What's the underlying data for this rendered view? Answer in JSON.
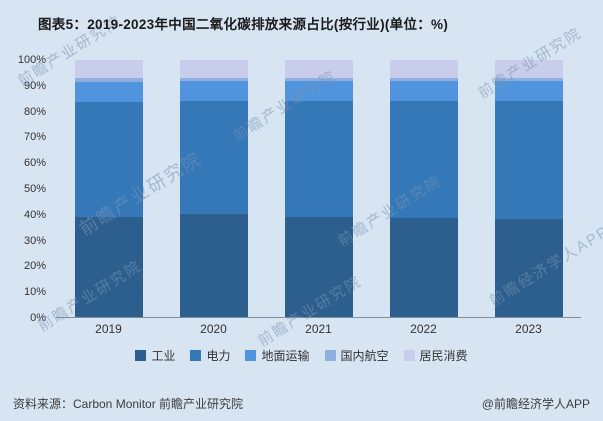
{
  "page": {
    "title": "图表5：2019-2023年中国二氧化碳排放来源占比(按行业)(单位：%)",
    "watermark": "前瞻产业研究院",
    "watermark_alt": "前瞻经济学人APP",
    "source_left": "资料来源：Carbon Monitor 前瞻产业研究院",
    "source_right": "@前瞻经济学人APP",
    "background_color": "#d7e4f1"
  },
  "chart_data": {
    "type": "bar",
    "stacked": true,
    "title": "图表5：2019-2023年中国二氧化碳排放来源占比(按行业)(单位：%)",
    "unit": "%",
    "categories": [
      "2019",
      "2020",
      "2021",
      "2022",
      "2023"
    ],
    "series": [
      {
        "name": "工业",
        "color": "#2d5f8e",
        "values": [
          39,
          40,
          39,
          38.5,
          38
        ]
      },
      {
        "name": "电力",
        "color": "#3478b8",
        "values": [
          44.5,
          44,
          45,
          45.5,
          46
        ]
      },
      {
        "name": "地面运输",
        "color": "#4f94dc",
        "values": [
          8,
          8,
          8,
          8,
          8
        ]
      },
      {
        "name": "国内航空",
        "color": "#8fb0de",
        "values": [
          1.5,
          1,
          1,
          1,
          1
        ]
      },
      {
        "name": "居民消费",
        "color": "#c7cdea",
        "values": [
          7,
          7,
          7,
          7,
          7
        ]
      }
    ],
    "xlabel": "",
    "ylabel": "",
    "ylim": [
      0,
      100
    ],
    "ytick_step": 10,
    "ytick_suffix": "%",
    "grid": false,
    "legend_position": "bottom"
  }
}
